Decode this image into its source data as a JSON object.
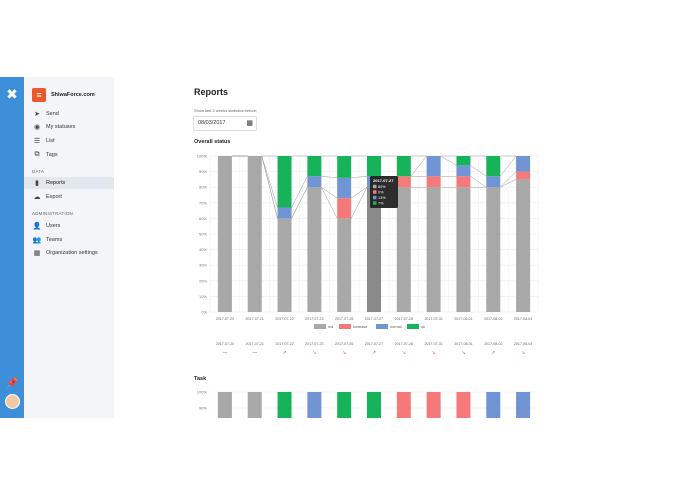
{
  "app": {
    "name": "ShiwaForce.com"
  },
  "sidebar": {
    "items": [
      {
        "label": "Send",
        "icon": "send-icon"
      },
      {
        "label": "My statuses",
        "icon": "user-circle-icon"
      },
      {
        "label": "List",
        "icon": "list-icon"
      },
      {
        "label": "Tags",
        "icon": "tags-icon"
      }
    ],
    "data_title": "DATA",
    "data_items": [
      {
        "label": "Reports",
        "icon": "chart-icon",
        "active": true
      },
      {
        "label": "Export",
        "icon": "cloud-download-icon"
      }
    ],
    "admin_title": "ADMINISTRATION",
    "admin_items": [
      {
        "label": "Users",
        "icon": "users-icon"
      },
      {
        "label": "Teams",
        "icon": "teams-icon"
      },
      {
        "label": "Organization settings",
        "icon": "building-icon"
      }
    ]
  },
  "page": {
    "title": "Reports",
    "hint": "Show last 2 weeks statistics before:",
    "date_value": "08/03/2017",
    "overall_title": "Overall status",
    "task_title": "Task"
  },
  "colors": {
    "na": "#a8a8a8",
    "increase": "#f57979",
    "normal": "#7094d4",
    "ok": "#16b35a",
    "rail": "#3d8fd9"
  },
  "chart_data": [
    {
      "type": "bar",
      "title": "Overall status",
      "categories": [
        "2017-07-20",
        "2017-07-21",
        "2017-07-22",
        "2017-07-23",
        "2017-07-26",
        "2017-07-27",
        "2017-07-28",
        "2017-07-31",
        "2017-08-01",
        "2017-08-02",
        "2017-08-03"
      ],
      "yticks": [
        "100%",
        "90%",
        "80%",
        "70%",
        "60%",
        "50%",
        "40%",
        "30%",
        "20%",
        "10%",
        "0%"
      ],
      "ylim": [
        0,
        100
      ],
      "stacked": true,
      "series": [
        {
          "name": "n/a",
          "color_key": "na",
          "values": [
            100,
            100,
            60,
            80,
            60,
            80,
            80,
            80,
            80,
            80,
            85
          ]
        },
        {
          "name": "increase",
          "color_key": "increase",
          "values": [
            0,
            0,
            0,
            0,
            13,
            0,
            7,
            7,
            7,
            0,
            5
          ]
        },
        {
          "name": "normal",
          "color_key": "normal",
          "values": [
            0,
            0,
            7,
            7,
            13,
            7,
            0,
            13,
            7,
            7,
            10
          ]
        },
        {
          "name": "ok",
          "color_key": "ok",
          "values": [
            0,
            0,
            33,
            13,
            14,
            13,
            13,
            0,
            6,
            13,
            0
          ]
        }
      ],
      "trend_labels": [
        "2017-07-20",
        "2017-07-21",
        "2017-07-22",
        "2017-07-23",
        "2017-07-26",
        "2017-07-27",
        "2017-07-28",
        "2017-07-31",
        "2017-08-01",
        "2017-08-02",
        "2017-08-03"
      ],
      "trends": [
        "—",
        "—",
        "↗",
        "↘",
        "↘",
        "↗",
        "↘",
        "↘",
        "↘",
        "↗",
        "↘"
      ],
      "tooltip": {
        "date": "2017-07-27",
        "lines": [
          "80%",
          "0%",
          "13%",
          "7%"
        ]
      },
      "legend": "bottom"
    },
    {
      "type": "bar",
      "title": "Task",
      "yticks": [
        "100%",
        "90%"
      ],
      "stacked": true,
      "top_colors": [
        "na",
        "na",
        "ok",
        "normal",
        "ok",
        "ok",
        "increase",
        "increase",
        "increase",
        "normal",
        "normal"
      ]
    }
  ]
}
